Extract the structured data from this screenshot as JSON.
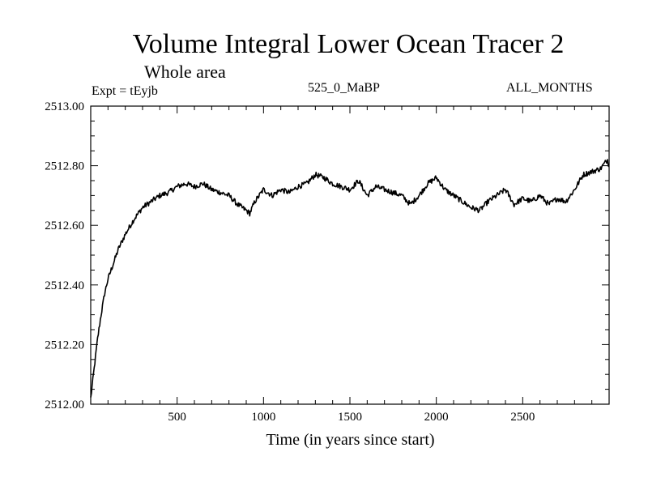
{
  "chart_data": {
    "type": "line",
    "title": "Volume Integral Lower Ocean Tracer 2",
    "subtitle": "Whole area",
    "annotations": {
      "left": "Expt = tEyjb",
      "center": "525_0_MaBP",
      "right": "ALL_MONTHS"
    },
    "xlabel": "Time (in years since start)",
    "ylabel": "",
    "xlim": [
      0,
      3000
    ],
    "ylim": [
      2512.0,
      2513.0
    ],
    "xticks": [
      500,
      1000,
      1500,
      2000,
      2500
    ],
    "xtick_labels": [
      "500",
      "1000",
      "1500",
      "2000",
      "2500"
    ],
    "yticks": [
      2512.0,
      2512.2,
      2512.4,
      2512.6,
      2512.8,
      2513.0
    ],
    "ytick_labels": [
      "2512.00",
      "2512.20",
      "2512.40",
      "2512.60",
      "2512.80",
      "2513.00"
    ],
    "grid": false,
    "series": [
      {
        "name": "Lower Ocean Tracer 2",
        "color": "#000000",
        "x": [
          0,
          20,
          40,
          60,
          80,
          100,
          130,
          160,
          200,
          250,
          300,
          350,
          400,
          450,
          500,
          550,
          600,
          650,
          700,
          750,
          800,
          850,
          900,
          920,
          950,
          1000,
          1050,
          1100,
          1150,
          1200,
          1250,
          1300,
          1350,
          1400,
          1450,
          1500,
          1550,
          1600,
          1650,
          1700,
          1750,
          1800,
          1850,
          1900,
          1950,
          2000,
          2050,
          2100,
          2150,
          2200,
          2250,
          2300,
          2350,
          2400,
          2450,
          2500,
          2550,
          2600,
          2650,
          2700,
          2750,
          2800,
          2850,
          2900,
          2950,
          2990,
          3000
        ],
        "y": [
          2512.02,
          2512.12,
          2512.22,
          2512.3,
          2512.37,
          2512.42,
          2512.47,
          2512.52,
          2512.57,
          2512.62,
          2512.66,
          2512.68,
          2512.7,
          2512.71,
          2512.73,
          2512.74,
          2512.73,
          2512.74,
          2512.72,
          2512.71,
          2512.7,
          2512.67,
          2512.65,
          2512.64,
          2512.68,
          2512.72,
          2512.7,
          2512.72,
          2512.71,
          2512.73,
          2512.74,
          2512.77,
          2512.76,
          2512.74,
          2512.73,
          2512.72,
          2512.75,
          2512.7,
          2512.73,
          2512.72,
          2512.71,
          2512.7,
          2512.67,
          2512.7,
          2512.74,
          2512.76,
          2512.72,
          2512.7,
          2512.68,
          2512.66,
          2512.65,
          2512.68,
          2512.7,
          2512.72,
          2512.67,
          2512.69,
          2512.68,
          2512.7,
          2512.67,
          2512.69,
          2512.68,
          2512.72,
          2512.77,
          2512.78,
          2512.79,
          2512.82,
          2512.8
        ]
      }
    ]
  }
}
